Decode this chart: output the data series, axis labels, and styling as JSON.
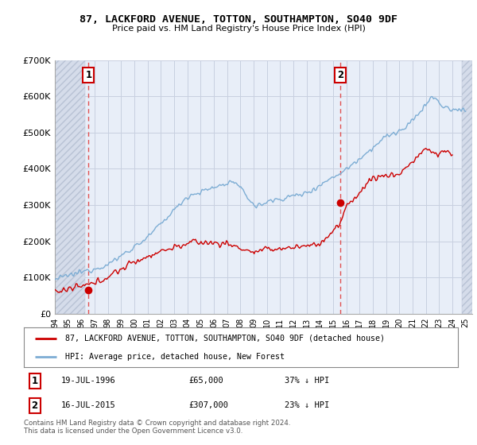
{
  "title": "87, LACKFORD AVENUE, TOTTON, SOUTHAMPTON, SO40 9DF",
  "subtitle": "Price paid vs. HM Land Registry's House Price Index (HPI)",
  "legend_line1": "87, LACKFORD AVENUE, TOTTON, SOUTHAMPTON, SO40 9DF (detached house)",
  "legend_line2": "HPI: Average price, detached house, New Forest",
  "annotation1_date": "19-JUL-1996",
  "annotation1_price": "£65,000",
  "annotation1_hpi": "37% ↓ HPI",
  "annotation2_date": "16-JUL-2015",
  "annotation2_price": "£307,000",
  "annotation2_hpi": "23% ↓ HPI",
  "copyright": "Contains HM Land Registry data © Crown copyright and database right 2024.\nThis data is licensed under the Open Government Licence v3.0.",
  "ylim": [
    0,
    700000
  ],
  "yticks": [
    0,
    100000,
    200000,
    300000,
    400000,
    500000,
    600000,
    700000
  ],
  "ytick_labels": [
    "£0",
    "£100K",
    "£200K",
    "£300K",
    "£400K",
    "£500K",
    "£600K",
    "£700K"
  ],
  "purchase1_x": 1996.54,
  "purchase1_y": 65000,
  "purchase2_x": 2015.54,
  "purchase2_y": 307000,
  "xmin": 1994.0,
  "xmax": 2025.5,
  "hatch_end": 1996.3,
  "hatch_start2": 2024.7,
  "red_color": "#cc0000",
  "blue_color": "#7dadd4",
  "background_color": "#e8eef8",
  "grid_color": "#c8d0e0",
  "dashed_line_color": "#e05050"
}
